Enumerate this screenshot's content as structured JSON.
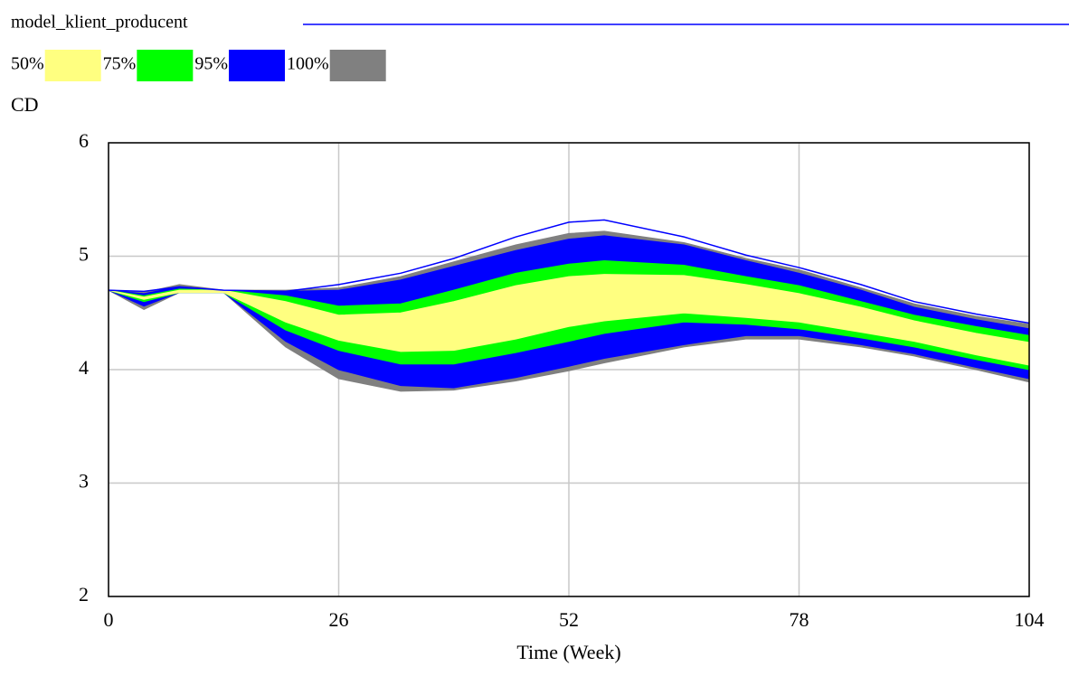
{
  "chart_data": {
    "type": "band",
    "x_label": "Time (Week)",
    "y_label": "CD",
    "x": [
      0,
      4,
      8,
      13,
      20,
      26,
      33,
      39,
      46,
      52,
      56,
      65,
      72,
      78,
      85,
      91,
      98,
      104
    ],
    "xlim": [
      0,
      104
    ],
    "xticks": [
      0,
      26,
      52,
      78,
      104
    ],
    "ylim": [
      2,
      6
    ],
    "yticks": [
      2,
      3,
      4,
      5,
      6
    ],
    "grid": true,
    "series": [
      {
        "name": "model_klient_producent",
        "color": "#0000ff",
        "values": [
          4.7,
          4.69,
          4.73,
          4.7,
          4.69,
          4.75,
          4.85,
          4.98,
          5.17,
          5.3,
          5.32,
          5.17,
          5.01,
          4.9,
          4.75,
          4.6,
          4.49,
          4.41
        ]
      }
    ],
    "bands": [
      {
        "name": "100%",
        "color": "#808080",
        "upper": [
          4.7,
          4.68,
          4.75,
          4.7,
          4.7,
          4.72,
          4.82,
          4.95,
          5.1,
          5.2,
          5.22,
          5.12,
          4.98,
          4.88,
          4.72,
          4.58,
          4.47,
          4.4
        ],
        "lower": [
          4.7,
          4.53,
          4.68,
          4.68,
          4.2,
          3.92,
          3.81,
          3.82,
          3.9,
          3.99,
          4.06,
          4.2,
          4.27,
          4.27,
          4.2,
          4.12,
          4.0,
          3.89
        ]
      },
      {
        "name": "95%",
        "color": "#0000ff",
        "upper": [
          4.7,
          4.67,
          4.73,
          4.7,
          4.69,
          4.7,
          4.79,
          4.91,
          5.05,
          5.15,
          5.18,
          5.1,
          4.96,
          4.85,
          4.7,
          4.55,
          4.44,
          4.36
        ],
        "lower": [
          4.7,
          4.56,
          4.68,
          4.68,
          4.25,
          4.0,
          3.86,
          3.84,
          3.93,
          4.03,
          4.1,
          4.22,
          4.3,
          4.3,
          4.22,
          4.14,
          4.02,
          3.92
        ]
      },
      {
        "name": "75%",
        "color": "#00ff00",
        "upper": [
          4.7,
          4.65,
          4.71,
          4.7,
          4.65,
          4.56,
          4.58,
          4.7,
          4.85,
          4.93,
          4.96,
          4.92,
          4.82,
          4.74,
          4.6,
          4.48,
          4.38,
          4.3
        ],
        "lower": [
          4.7,
          4.6,
          4.68,
          4.68,
          4.35,
          4.17,
          4.05,
          4.05,
          4.15,
          4.25,
          4.32,
          4.42,
          4.4,
          4.36,
          4.28,
          4.2,
          4.09,
          4.0
        ]
      },
      {
        "name": "50%",
        "color": "#ffff80",
        "upper": [
          4.7,
          4.64,
          4.7,
          4.7,
          4.6,
          4.48,
          4.5,
          4.6,
          4.74,
          4.82,
          4.84,
          4.83,
          4.75,
          4.67,
          4.55,
          4.43,
          4.32,
          4.24
        ],
        "lower": [
          4.7,
          4.62,
          4.68,
          4.68,
          4.42,
          4.26,
          4.16,
          4.17,
          4.27,
          4.38,
          4.43,
          4.5,
          4.46,
          4.42,
          4.33,
          4.25,
          4.13,
          4.04
        ]
      }
    ]
  }
}
